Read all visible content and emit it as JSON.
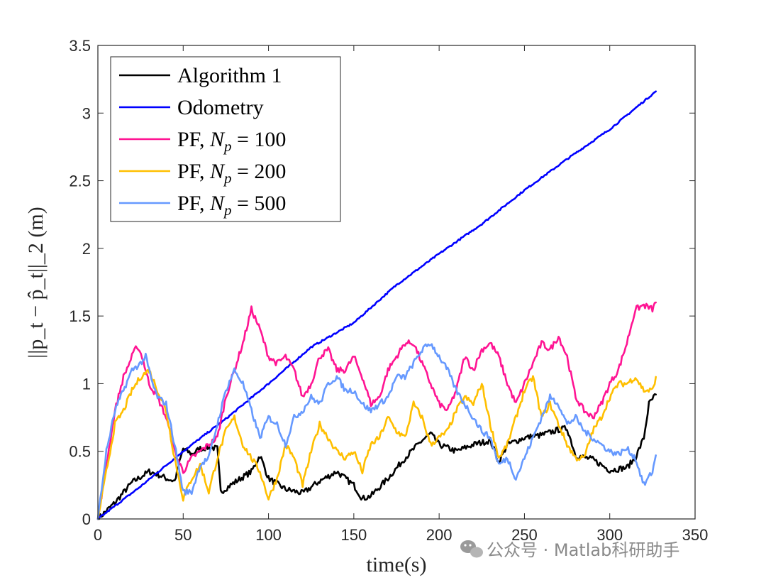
{
  "chart_data": {
    "type": "line",
    "title": "",
    "xlabel": "time(s)",
    "ylabel": "||p_t − p̂_t||_2 (m)",
    "xlim": [
      0,
      350
    ],
    "ylim": [
      0,
      3.5
    ],
    "xticks": [
      0,
      50,
      100,
      150,
      200,
      250,
      300,
      350
    ],
    "yticks": [
      0,
      0.5,
      1,
      1.5,
      2,
      2.5,
      3,
      3.5
    ],
    "xtick_labels": [
      "0",
      "50",
      "100",
      "150",
      "200",
      "250",
      "300",
      "350"
    ],
    "ytick_labels": [
      "0",
      "0.5",
      "1",
      "1.5",
      "2",
      "2.5",
      "3",
      "3.5"
    ],
    "grid": false,
    "legend_position": "top-left",
    "series": [
      {
        "name": "Algorithm 1",
        "color": "#000000",
        "x": [
          0,
          10,
          20,
          30,
          35,
          40,
          45,
          50,
          55,
          60,
          65,
          70,
          72,
          80,
          90,
          95,
          100,
          110,
          120,
          130,
          140,
          150,
          155,
          160,
          170,
          180,
          190,
          195,
          200,
          210,
          220,
          230,
          235,
          240,
          250,
          260,
          270,
          275,
          280,
          290,
          300,
          310,
          315,
          320,
          323,
          327
        ],
        "values": [
          0,
          0.12,
          0.27,
          0.35,
          0.33,
          0.3,
          0.28,
          0.52,
          0.48,
          0.52,
          0.53,
          0.52,
          0.2,
          0.27,
          0.35,
          0.47,
          0.3,
          0.22,
          0.19,
          0.28,
          0.35,
          0.25,
          0.15,
          0.17,
          0.3,
          0.45,
          0.58,
          0.63,
          0.55,
          0.5,
          0.55,
          0.58,
          0.42,
          0.55,
          0.6,
          0.62,
          0.66,
          0.67,
          0.47,
          0.44,
          0.36,
          0.38,
          0.45,
          0.6,
          0.85,
          0.92
        ]
      },
      {
        "name": "Odometry",
        "color": "#0000ff",
        "x": [
          0,
          25,
          50,
          75,
          100,
          125,
          150,
          175,
          200,
          225,
          250,
          275,
          300,
          327
        ],
        "values": [
          0,
          0.24,
          0.5,
          0.74,
          1.0,
          1.27,
          1.45,
          1.73,
          1.96,
          2.18,
          2.43,
          2.66,
          2.88,
          3.16
        ]
      },
      {
        "name": "PF, N_p = 100",
        "color": "#ff1493",
        "x": [
          0,
          5,
          10,
          15,
          20,
          23,
          26,
          30,
          35,
          40,
          45,
          50,
          55,
          60,
          65,
          70,
          75,
          80,
          85,
          90,
          95,
          100,
          105,
          110,
          115,
          120,
          125,
          130,
          135,
          140,
          145,
          150,
          155,
          160,
          165,
          170,
          175,
          180,
          185,
          190,
          195,
          200,
          205,
          210,
          215,
          220,
          225,
          230,
          235,
          240,
          245,
          250,
          255,
          260,
          265,
          270,
          275,
          280,
          285,
          290,
          295,
          300,
          305,
          310,
          315,
          320,
          325,
          327
        ],
        "values": [
          0,
          0.4,
          0.8,
          1.05,
          1.2,
          1.28,
          1.2,
          1.0,
          0.9,
          0.75,
          0.5,
          0.35,
          0.45,
          0.5,
          0.55,
          0.6,
          0.9,
          1.1,
          1.3,
          1.55,
          1.4,
          1.2,
          1.15,
          1.2,
          1.1,
          0.9,
          1.0,
          1.2,
          1.25,
          1.1,
          1.1,
          1.2,
          1.05,
          0.85,
          0.9,
          1.1,
          1.2,
          1.3,
          1.3,
          1.15,
          1.0,
          0.85,
          0.8,
          0.95,
          1.2,
          1.1,
          1.25,
          1.3,
          1.2,
          1.0,
          0.85,
          1.0,
          1.15,
          1.3,
          1.25,
          1.35,
          1.2,
          0.9,
          0.8,
          0.75,
          0.85,
          1.0,
          1.1,
          1.3,
          1.55,
          1.58,
          1.55,
          1.6
        ]
      },
      {
        "name": "PF, N_p = 200",
        "color": "#ffbf00",
        "x": [
          0,
          5,
          10,
          15,
          20,
          25,
          30,
          35,
          40,
          45,
          50,
          55,
          60,
          65,
          70,
          75,
          80,
          85,
          90,
          95,
          100,
          105,
          110,
          115,
          120,
          125,
          130,
          135,
          140,
          145,
          150,
          155,
          160,
          165,
          170,
          175,
          180,
          185,
          190,
          195,
          200,
          205,
          210,
          215,
          220,
          225,
          230,
          235,
          240,
          245,
          250,
          255,
          260,
          265,
          270,
          275,
          280,
          285,
          290,
          295,
          300,
          305,
          310,
          315,
          320,
          325,
          327
        ],
        "values": [
          0,
          0.35,
          0.7,
          0.8,
          0.95,
          1.05,
          1.1,
          0.95,
          0.8,
          0.45,
          0.15,
          0.3,
          0.4,
          0.2,
          0.45,
          0.65,
          0.75,
          0.55,
          0.45,
          0.35,
          0.15,
          0.3,
          0.55,
          0.45,
          0.25,
          0.5,
          0.7,
          0.6,
          0.5,
          0.45,
          0.5,
          0.35,
          0.55,
          0.6,
          0.75,
          0.65,
          0.6,
          0.85,
          0.75,
          0.55,
          0.6,
          0.65,
          0.8,
          0.9,
          0.85,
          1.0,
          0.7,
          0.45,
          0.55,
          0.75,
          0.95,
          1.05,
          0.75,
          0.85,
          0.7,
          0.55,
          0.45,
          0.45,
          0.65,
          0.75,
          0.9,
          1.0,
          1.0,
          1.05,
          0.95,
          0.95,
          1.05
        ]
      },
      {
        "name": "PF, N_p = 500",
        "color": "#6699ff",
        "x": [
          0,
          5,
          10,
          15,
          20,
          25,
          28,
          32,
          35,
          40,
          45,
          50,
          55,
          60,
          65,
          70,
          75,
          80,
          85,
          90,
          95,
          100,
          105,
          110,
          115,
          120,
          125,
          130,
          135,
          140,
          145,
          150,
          155,
          160,
          165,
          170,
          175,
          180,
          185,
          190,
          195,
          200,
          205,
          210,
          215,
          220,
          225,
          230,
          235,
          240,
          245,
          250,
          255,
          260,
          265,
          270,
          275,
          280,
          285,
          290,
          295,
          300,
          305,
          310,
          315,
          320,
          325,
          327
        ],
        "values": [
          0,
          0.5,
          0.8,
          0.95,
          1.1,
          1.15,
          1.2,
          1.0,
          0.9,
          0.85,
          0.55,
          0.2,
          0.2,
          0.4,
          0.45,
          0.7,
          0.95,
          1.1,
          1.0,
          0.8,
          0.6,
          0.75,
          0.7,
          0.55,
          0.75,
          0.8,
          0.9,
          0.85,
          1.0,
          1.05,
          0.95,
          0.95,
          0.85,
          0.8,
          0.85,
          0.9,
          1.05,
          1.05,
          1.15,
          1.25,
          1.3,
          1.2,
          1.1,
          0.95,
          0.85,
          0.75,
          0.65,
          0.6,
          0.4,
          0.45,
          0.3,
          0.45,
          0.6,
          0.75,
          0.9,
          0.85,
          0.7,
          0.75,
          0.65,
          0.6,
          0.55,
          0.5,
          0.48,
          0.52,
          0.45,
          0.25,
          0.35,
          0.47
        ]
      }
    ]
  },
  "legend": {
    "items": [
      {
        "label": "Algorithm 1",
        "color": "#000000"
      },
      {
        "label": "Odometry",
        "color": "#0000ff"
      },
      {
        "label": "PF, N",
        "sub": "p",
        "suffix": " = 100",
        "color": "#ff1493"
      },
      {
        "label": "PF, N",
        "sub": "p",
        "suffix": " = 200",
        "color": "#ffbf00"
      },
      {
        "label": "PF, N",
        "sub": "p",
        "suffix": " = 500",
        "color": "#6699ff"
      }
    ]
  },
  "watermark": {
    "text": "公众号 · Matlab科研助手",
    "icon": "wechat-icon"
  }
}
